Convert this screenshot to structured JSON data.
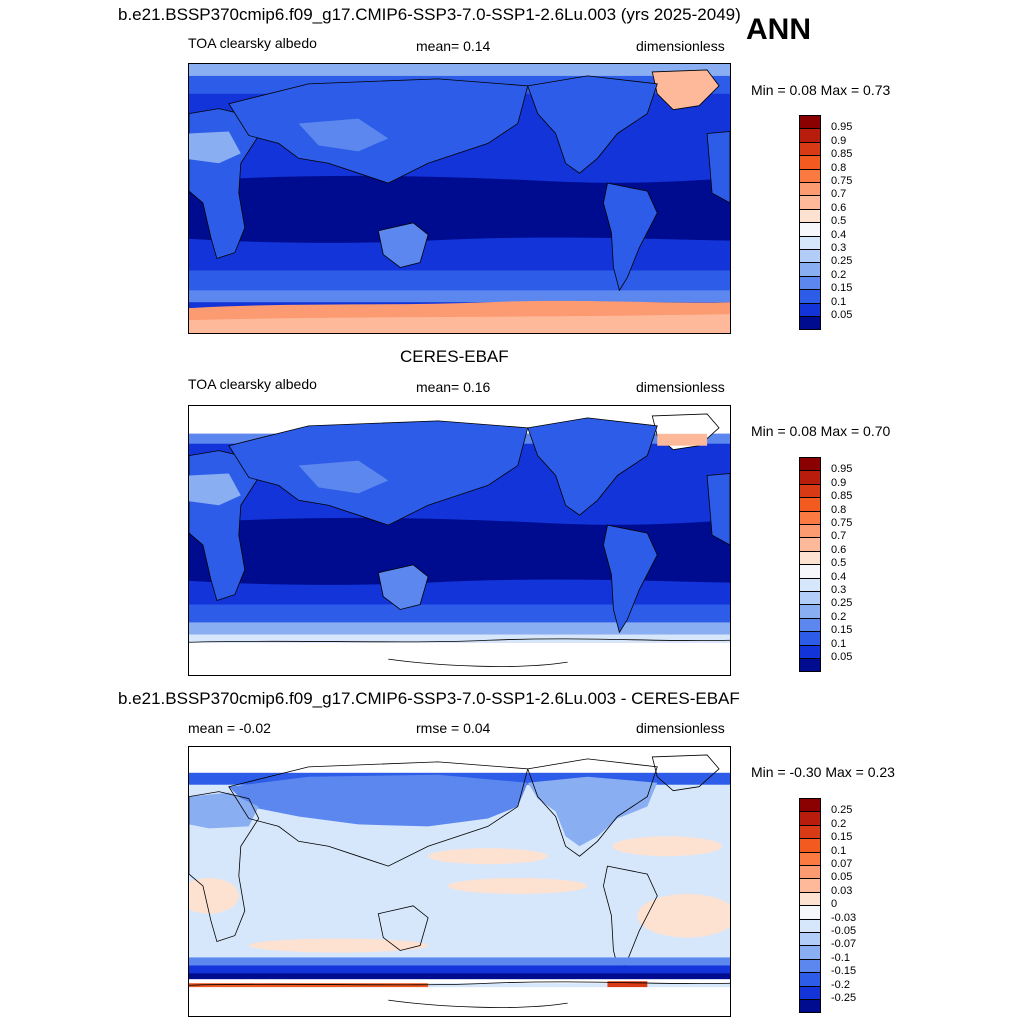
{
  "season": "ANN",
  "panels": [
    {
      "id": "model",
      "title": "b.e21.BSSP370cmip6.f09_g17.CMIP6-SSP3-7.0-SSP1-2.6Lu.003 (yrs 2025-2049)",
      "left_text": "TOA clearsky albedo",
      "stat_text": "mean=   0.14",
      "units": "dimensionless",
      "minmax": "Min =   0.08 Max =   0.73",
      "levels": [
        "0.95",
        "0.9",
        "0.85",
        "0.8",
        "0.75",
        "0.7",
        "0.6",
        "0.5",
        "0.4",
        "0.3",
        "0.25",
        "0.2",
        "0.15",
        "0.1",
        "0.05"
      ],
      "colors": [
        "#8b0000",
        "#b81c0c",
        "#d83a16",
        "#f25a20",
        "#fb7a42",
        "#fc9a72",
        "#fdb99a",
        "#fde1d1",
        "#f6f7fb",
        "#d6e7fb",
        "#b2cdf7",
        "#8aaef2",
        "#5b87ee",
        "#2d5de8",
        "#1234d8",
        "#000c8f"
      ]
    },
    {
      "id": "obs",
      "title": "CERES-EBAF",
      "left_text": "TOA clearsky albedo",
      "stat_text": "mean=   0.16",
      "units": "dimensionless",
      "minmax": "Min =   0.08 Max =   0.70",
      "levels": [
        "0.95",
        "0.9",
        "0.85",
        "0.8",
        "0.75",
        "0.7",
        "0.6",
        "0.5",
        "0.4",
        "0.3",
        "0.25",
        "0.2",
        "0.15",
        "0.1",
        "0.05"
      ],
      "colors": [
        "#8b0000",
        "#b81c0c",
        "#d83a16",
        "#f25a20",
        "#fb7a42",
        "#fc9a72",
        "#fdb99a",
        "#fde1d1",
        "#f6f7fb",
        "#d6e7fb",
        "#b2cdf7",
        "#8aaef2",
        "#5b87ee",
        "#2d5de8",
        "#1234d8",
        "#000c8f"
      ]
    },
    {
      "id": "diff",
      "title": "b.e21.BSSP370cmip6.f09_g17.CMIP6-SSP3-7.0-SSP1-2.6Lu.003 - CERES-EBAF",
      "left_text": "mean =  -0.02",
      "stat_text": "rmse =   0.04",
      "units": "dimensionless",
      "minmax": "Min =  -0.30 Max =   0.23",
      "levels": [
        "0.25",
        "0.2",
        "0.15",
        "0.1",
        "0.07",
        "0.05",
        "0.03",
        "0",
        "-0.03",
        "-0.05",
        "-0.07",
        "-0.1",
        "-0.15",
        "-0.2",
        "-0.25"
      ],
      "colors": [
        "#8b0000",
        "#b81c0c",
        "#d83a16",
        "#f25a20",
        "#fb7a42",
        "#fc9a72",
        "#fdb99a",
        "#fde1d1",
        "#f6f7fb",
        "#d6e7fb",
        "#b2cdf7",
        "#8aaef2",
        "#5b87ee",
        "#2d5de8",
        "#1234d8",
        "#000c8f"
      ]
    }
  ]
}
